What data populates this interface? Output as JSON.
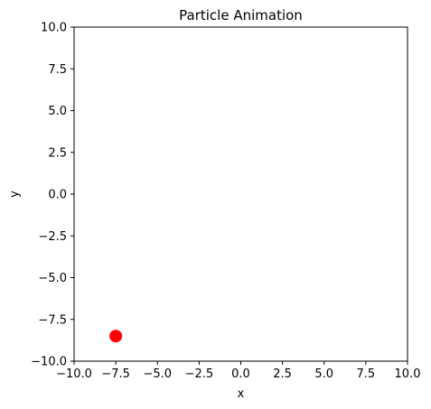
{
  "chart_data": {
    "type": "scatter",
    "title": "Particle Animation",
    "xlabel": "x",
    "ylabel": "y",
    "xlim": [
      -10,
      10
    ],
    "ylim": [
      -10,
      10
    ],
    "xticks": [
      -10,
      -7.5,
      -5,
      -2.5,
      0,
      2.5,
      5,
      7.5,
      10
    ],
    "yticks": [
      -10,
      -7.5,
      -5,
      -2.5,
      0,
      2.5,
      5,
      7.5,
      10
    ],
    "xtick_labels": [
      "−10.0",
      "−7.5",
      "−5.0",
      "−2.5",
      "0.0",
      "2.5",
      "5.0",
      "7.5",
      "10.0"
    ],
    "ytick_labels": [
      "−10.0",
      "−7.5",
      "−5.0",
      "−2.5",
      "0.0",
      "2.5",
      "5.0",
      "7.5",
      "10.0"
    ],
    "grid": false,
    "series": [
      {
        "points": [
          {
            "x": -7.5,
            "y": -8.5
          }
        ],
        "color": "#ff0000",
        "marker": "circle"
      }
    ]
  }
}
